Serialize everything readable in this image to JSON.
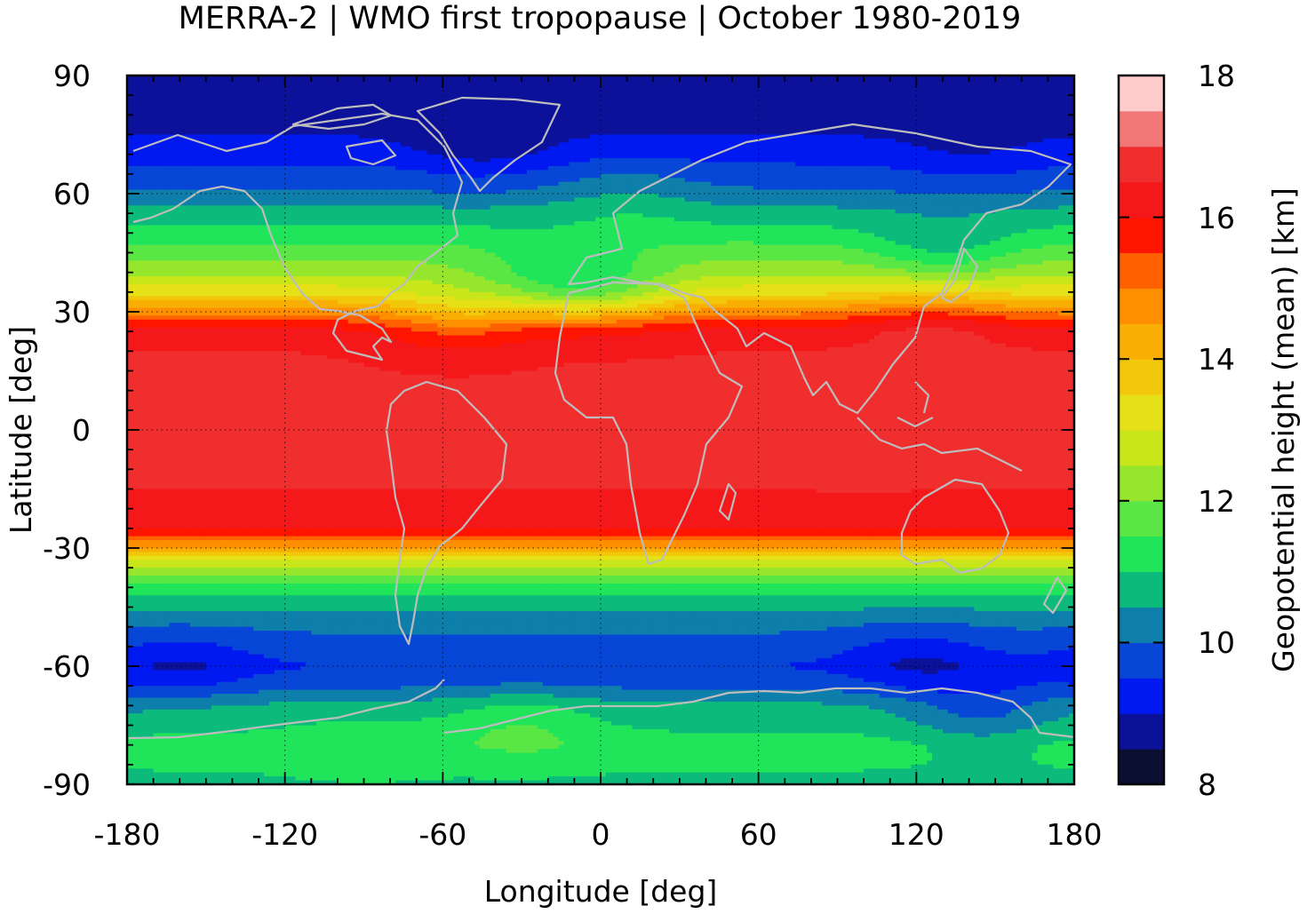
{
  "chart_data": {
    "type": "heatmap",
    "title": "MERRA-2 | WMO first tropopause | October 1980-2019",
    "xlabel": "Longitude [deg]",
    "ylabel": "Latitude [deg]",
    "xlim": [
      -180,
      180
    ],
    "ylim": [
      -90,
      90
    ],
    "x_ticks": [
      "-180",
      "-120",
      "-60",
      "0",
      "60",
      "120",
      "180"
    ],
    "y_ticks": [
      "90",
      "60",
      "30",
      "0",
      "-30",
      "-60",
      "-90"
    ],
    "x_tick_values": [
      -180,
      -120,
      -60,
      0,
      60,
      120,
      180
    ],
    "y_tick_values": [
      90,
      60,
      30,
      0,
      -30,
      -60,
      -90
    ],
    "grid": true,
    "colorbar": {
      "label": "Geopotential height (mean) [km]",
      "range": [
        8,
        18
      ],
      "ticks": [
        "8",
        "10",
        "12",
        "14",
        "16",
        "18"
      ],
      "tick_values": [
        8,
        10,
        12,
        14,
        16,
        18
      ],
      "levels": [
        8,
        8.5,
        9,
        9.5,
        10,
        10.5,
        11,
        11.5,
        12,
        12.5,
        13,
        13.5,
        14,
        14.5,
        15,
        15.5,
        16,
        16.5,
        17,
        17.5,
        18
      ],
      "colors": [
        "#0b1033",
        "#0c119a",
        "#0019f0",
        "#0746d6",
        "#0e7eaa",
        "#0cba7c",
        "#20e45a",
        "#5ae645",
        "#96e62d",
        "#c8e61a",
        "#e6e017",
        "#f2c80a",
        "#f8ae02",
        "#fd8f00",
        "#ff6000",
        "#ff1500",
        "#f5181a",
        "#f02e2e",
        "#f47777",
        "#ffcccc"
      ]
    },
    "zonal_mean_profile": {
      "lat": [
        -90,
        -80,
        -70,
        -65,
        -60,
        -50,
        -45,
        -40,
        -35,
        -30,
        -28,
        -25,
        -20,
        -10,
        0,
        10,
        20,
        25,
        28,
        30,
        32,
        35,
        40,
        45,
        50,
        55,
        60,
        65,
        70,
        75,
        80,
        90
      ],
      "height_km": [
        10.9,
        11.2,
        10.6,
        9.9,
        9.5,
        10.1,
        10.6,
        11.3,
        12.4,
        14.3,
        15.2,
        16.1,
        16.4,
        16.6,
        16.6,
        16.6,
        16.5,
        16.2,
        15.5,
        14.8,
        14.2,
        13.3,
        12.4,
        11.8,
        11.2,
        10.7,
        10.1,
        9.7,
        9.3,
        9.0,
        8.8,
        8.7
      ]
    },
    "anomalies": [
      {
        "lon": -30,
        "lat": -75,
        "delta_km": 0.6
      },
      {
        "lon": -90,
        "lat": -80,
        "delta_km": 0.3
      },
      {
        "lon": -160,
        "lat": -60,
        "delta_km": -0.6
      },
      {
        "lon": 120,
        "lat": -58,
        "delta_km": -0.6
      },
      {
        "lon": 145,
        "lat": -72,
        "delta_km": -0.8
      },
      {
        "lon": -45,
        "lat": 72,
        "delta_km": -0.5
      },
      {
        "lon": 0,
        "lat": 35,
        "delta_km": -1.1
      },
      {
        "lon": -20,
        "lat": 38,
        "delta_km": -0.8
      },
      {
        "lon": -55,
        "lat": 28,
        "delta_km": -0.9
      },
      {
        "lon": 130,
        "lat": 45,
        "delta_km": -0.8
      },
      {
        "lon": 125,
        "lat": 30,
        "delta_km": 0.6
      },
      {
        "lon": 100,
        "lat": 0,
        "delta_km": 0.3
      },
      {
        "lon": 10,
        "lat": 60,
        "delta_km": 0.4
      },
      {
        "lon": 140,
        "lat": 70,
        "delta_km": -0.3
      }
    ],
    "overlay": "coastlines"
  }
}
